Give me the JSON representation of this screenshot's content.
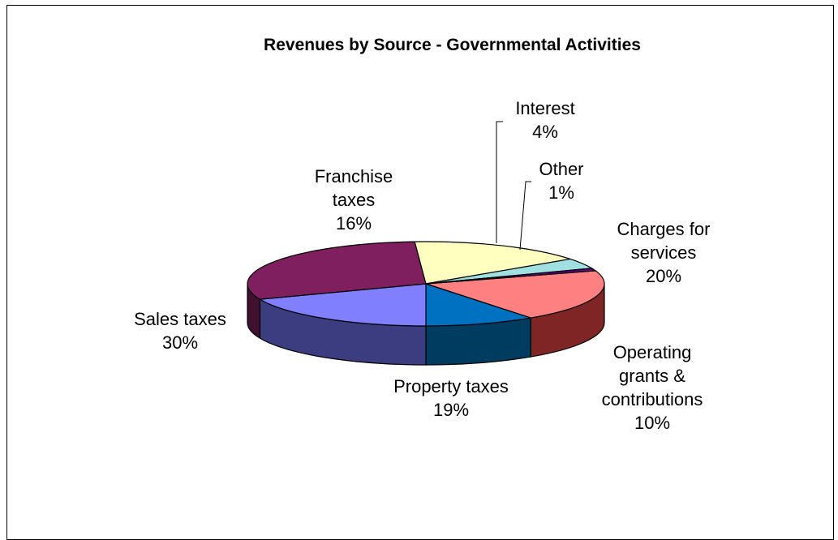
{
  "chart_data": {
    "type": "pie",
    "title": "Revenues by Source - Governmental Activities",
    "unit": "%",
    "slices": [
      {
        "label": "Charges for services",
        "label_lines": [
          "Charges for",
          "services"
        ],
        "value": 20,
        "value_text": "20%",
        "color": "#ff8080",
        "side_color": "#7f2525"
      },
      {
        "label": "Operating grants & contributions",
        "label_lines": [
          "Operating",
          "grants &",
          "contributions"
        ],
        "value": 10,
        "value_text": "10%",
        "color": "#0070c0",
        "side_color": "#003c5f"
      },
      {
        "label": "Property taxes",
        "label_lines": [
          "Property taxes"
        ],
        "value": 19,
        "value_text": "19%",
        "color": "#8080ff",
        "side_color": "#3c3c80"
      },
      {
        "label": "Sales taxes",
        "label_lines": [
          "Sales taxes"
        ],
        "value": 30,
        "value_text": "30%",
        "color": "#7f1f5f",
        "side_color": "#3f1030"
      },
      {
        "label": "Franchise taxes",
        "label_lines": [
          "Franchise",
          "taxes"
        ],
        "value": 16,
        "value_text": "16%",
        "color": "#ffffc0",
        "side_color": "#808060"
      },
      {
        "label": "Interest",
        "label_lines": [
          "Interest"
        ],
        "value": 4,
        "value_text": "4%",
        "color": "#a0e0e0",
        "side_color": "#507070"
      },
      {
        "label": "Other",
        "label_lines": [
          "Other"
        ],
        "value": 1,
        "value_text": "1%",
        "color": "#600080",
        "side_color": "#300040"
      }
    ],
    "legend": "none",
    "style": "3d-exploded-labels-with-leader-lines"
  }
}
